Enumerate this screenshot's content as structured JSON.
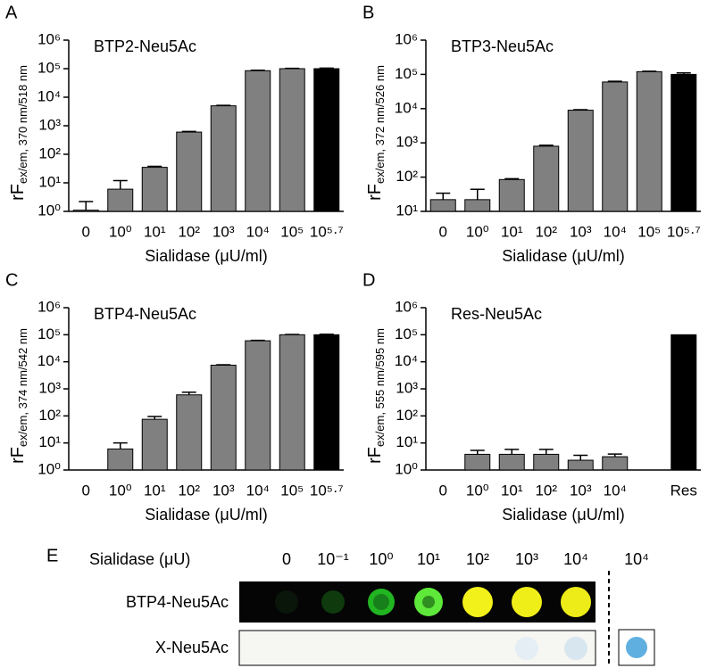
{
  "chart_data": [
    {
      "type": "bar",
      "panel": "A",
      "title": "BTP2-Neu5Ac",
      "ylabel": "rF",
      "ylabel_sub": "ex/em, 370 nm/518 nm",
      "xlabel": "Sialidase (μU/ml)",
      "categories": [
        "0",
        "10⁰",
        "10¹",
        "10²",
        "10³",
        "10⁴",
        "10⁵",
        "10⁵·⁷"
      ],
      "values": [
        1.1,
        6,
        35,
        600,
        5000,
        85000,
        100000,
        100000
      ],
      "errors": [
        1.1,
        6,
        3,
        30,
        200,
        3000,
        3000,
        5000
      ],
      "colors": [
        "#808080",
        "#808080",
        "#808080",
        "#808080",
        "#808080",
        "#808080",
        "#808080",
        "#000000"
      ],
      "log_scale": true,
      "ylim": [
        1,
        1000000
      ],
      "yticks": [
        {
          "value": 1,
          "label": "10⁰"
        },
        {
          "value": 10,
          "label": "10¹"
        },
        {
          "value": 100,
          "label": "10²"
        },
        {
          "value": 1000,
          "label": "10³"
        },
        {
          "value": 10000,
          "label": "10⁴"
        },
        {
          "value": 100000,
          "label": "10⁵"
        },
        {
          "value": 1000000,
          "label": "10⁶"
        }
      ]
    },
    {
      "type": "bar",
      "panel": "B",
      "title": "BTP3-Neu5Ac",
      "ylabel": "rF",
      "ylabel_sub": "ex/em, 372 nm/526 nm",
      "xlabel": "Sialidase (μU/ml)",
      "categories": [
        "0",
        "10⁰",
        "10¹",
        "10²",
        "10³",
        "10⁴",
        "10⁵",
        "10⁵·⁷"
      ],
      "values": [
        22,
        22,
        85,
        800,
        9000,
        60000,
        120000,
        100000
      ],
      "errors": [
        12,
        22,
        5,
        50,
        300,
        3000,
        4000,
        10000
      ],
      "colors": [
        "#808080",
        "#808080",
        "#808080",
        "#808080",
        "#808080",
        "#808080",
        "#808080",
        "#000000"
      ],
      "log_scale": true,
      "ylim": [
        10,
        1000000
      ],
      "yticks": [
        {
          "value": 10,
          "label": "10¹"
        },
        {
          "value": 100,
          "label": "10²"
        },
        {
          "value": 1000,
          "label": "10³"
        },
        {
          "value": 10000,
          "label": "10⁴"
        },
        {
          "value": 100000,
          "label": "10⁵"
        },
        {
          "value": 1000000,
          "label": "10⁶"
        }
      ]
    },
    {
      "type": "bar",
      "panel": "C",
      "title": "BTP4-Neu5Ac",
      "ylabel": "rF",
      "ylabel_sub": "ex/em, 374 nm/542 nm",
      "xlabel": "Sialidase (μU/ml)",
      "categories": [
        "0",
        "10⁰",
        "10¹",
        "10²",
        "10³",
        "10⁴",
        "10⁵",
        "10⁵·⁷"
      ],
      "values": [
        1,
        6,
        75,
        600,
        7500,
        60000,
        100000,
        100000
      ],
      "errors": [
        0,
        4,
        20,
        150,
        300,
        2000,
        3000,
        5000
      ],
      "colors": [
        "#808080",
        "#808080",
        "#808080",
        "#808080",
        "#808080",
        "#808080",
        "#808080",
        "#000000"
      ],
      "log_scale": true,
      "ylim": [
        1,
        1000000
      ],
      "yticks": [
        {
          "value": 1,
          "label": "10⁰"
        },
        {
          "value": 10,
          "label": "10¹"
        },
        {
          "value": 100,
          "label": "10²"
        },
        {
          "value": 1000,
          "label": "10³"
        },
        {
          "value": 10000,
          "label": "10⁴"
        },
        {
          "value": 100000,
          "label": "10⁵"
        },
        {
          "value": 1000000,
          "label": "10⁶"
        }
      ]
    },
    {
      "type": "bar",
      "panel": "D",
      "title": "Res-Neu5Ac",
      "ylabel": "rF",
      "ylabel_sub": "ex/em, 555 nm/595 nm",
      "xlabel": "Sialidase (μU/ml)",
      "categories": [
        "0",
        "10⁰",
        "10¹",
        "10²",
        "10³",
        "10⁴",
        null,
        "Res"
      ],
      "values": [
        1,
        3.8,
        3.8,
        3.8,
        2.3,
        3.1,
        null,
        100000
      ],
      "errors": [
        0,
        1.5,
        2,
        2,
        1.2,
        0.8,
        null,
        0
      ],
      "colors": [
        "#808080",
        "#808080",
        "#808080",
        "#808080",
        "#808080",
        "#808080",
        null,
        "#000000"
      ],
      "log_scale": true,
      "ylim": [
        1,
        1000000
      ],
      "yticks": [
        {
          "value": 1,
          "label": "10⁰"
        },
        {
          "value": 10,
          "label": "10¹"
        },
        {
          "value": 100,
          "label": "10²"
        },
        {
          "value": 1000,
          "label": "10³"
        },
        {
          "value": 10000,
          "label": "10⁴"
        },
        {
          "value": 100000,
          "label": "10⁵"
        },
        {
          "value": 1000000,
          "label": "10⁶"
        }
      ]
    }
  ],
  "panel_e": {
    "panel": "E",
    "header": "Sialidase (μU)",
    "columns": [
      "0",
      "10⁻¹",
      "10⁰",
      "10¹",
      "10²",
      "10³",
      "10⁴"
    ],
    "extra_column": "10⁴",
    "rows": [
      "BTP4-Neu5Ac",
      "X-Neu5Ac"
    ]
  }
}
